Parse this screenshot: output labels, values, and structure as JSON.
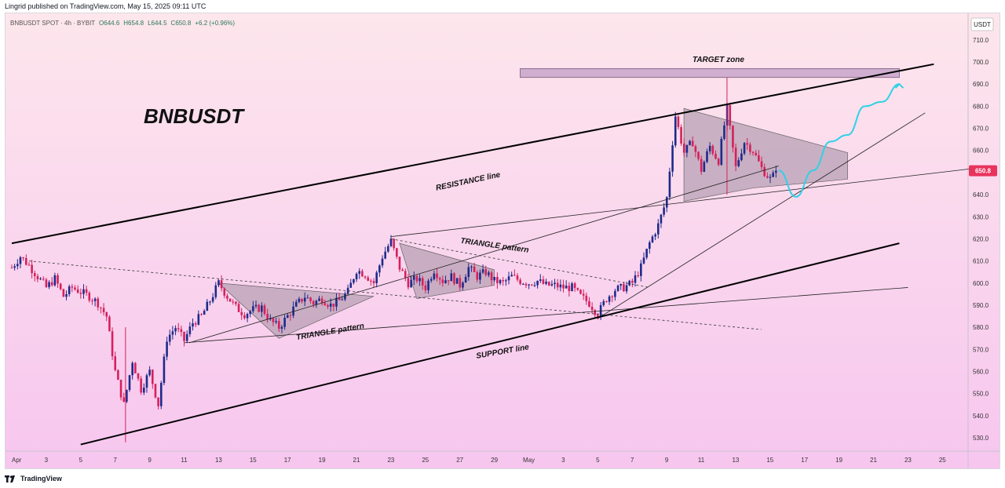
{
  "header": {
    "published_text": "Lingrid published on TradingView.com, May 15, 2025 09:11 UTC"
  },
  "footer": {
    "brand": "TradingView"
  },
  "colors": {
    "bg_top": "#fde6ec",
    "bg_bottom": "#f7c6ef",
    "up_candle": "#1e2a8a",
    "down_candle": "#d4215c",
    "price_tag": "#e8335d",
    "projection": "#2fd1e6",
    "zone_fill": "#c3a1c8",
    "triangle_fill": "#b8a0b4"
  },
  "chart_data": {
    "type": "candlestick",
    "symbol_info": {
      "name": "BNBUSDT SPOT · 4h · BYBIT",
      "open": "O644.6",
      "high": "H654.8",
      "low": "L644.5",
      "close": "C650.8",
      "change": "+6.2 (+0.96%)"
    },
    "watermark": "BNBUSDT",
    "currency": "USDT",
    "last_price": "650.8",
    "ylim": [
      524,
      722
    ],
    "y_ticks": [
      "530.0",
      "540.0",
      "550.0",
      "560.0",
      "570.0",
      "580.0",
      "590.0",
      "600.0",
      "610.0",
      "620.0",
      "630.0",
      "640.0",
      "650.0",
      "660.0",
      "670.0",
      "680.0",
      "690.0",
      "700.0",
      "710.0"
    ],
    "x_ticks": [
      {
        "label": "Apr",
        "day": 0
      },
      {
        "label": "3",
        "day": 2
      },
      {
        "label": "5",
        "day": 4
      },
      {
        "label": "7",
        "day": 6
      },
      {
        "label": "9",
        "day": 8
      },
      {
        "label": "11",
        "day": 10
      },
      {
        "label": "13",
        "day": 12
      },
      {
        "label": "15",
        "day": 14
      },
      {
        "label": "17",
        "day": 16
      },
      {
        "label": "19",
        "day": 18
      },
      {
        "label": "21",
        "day": 20
      },
      {
        "label": "23",
        "day": 22
      },
      {
        "label": "25",
        "day": 24
      },
      {
        "label": "27",
        "day": 26
      },
      {
        "label": "29",
        "day": 28
      },
      {
        "label": "May",
        "day": 30
      },
      {
        "label": "3",
        "day": 32
      },
      {
        "label": "5",
        "day": 34
      },
      {
        "label": "7",
        "day": 36
      },
      {
        "label": "9",
        "day": 38
      },
      {
        "label": "11",
        "day": 40
      },
      {
        "label": "13",
        "day": 42
      },
      {
        "label": "15",
        "day": 44
      },
      {
        "label": "17",
        "day": 46
      },
      {
        "label": "19",
        "day": 48
      },
      {
        "label": "21",
        "day": 50
      },
      {
        "label": "23",
        "day": 52
      },
      {
        "label": "25",
        "day": 54
      }
    ],
    "close_path": [
      [
        0,
        607
      ],
      [
        0.5,
        612
      ],
      [
        1,
        608
      ],
      [
        1.5,
        603
      ],
      [
        2,
        598
      ],
      [
        2.5,
        602
      ],
      [
        3,
        594
      ],
      [
        3.5,
        598
      ],
      [
        4,
        596
      ],
      [
        4.5,
        594
      ],
      [
        5,
        591
      ],
      [
        5.5,
        585
      ],
      [
        6,
        560
      ],
      [
        6.5,
        545
      ],
      [
        7,
        565
      ],
      [
        7.5,
        552
      ],
      [
        8,
        560
      ],
      [
        8.5,
        545
      ],
      [
        9,
        575
      ],
      [
        9.5,
        580
      ],
      [
        10,
        574
      ],
      [
        10.5,
        582
      ],
      [
        11,
        585
      ],
      [
        11.5,
        592
      ],
      [
        12,
        600
      ],
      [
        12.5,
        594
      ],
      [
        13,
        589
      ],
      [
        13.5,
        586
      ],
      [
        14,
        588
      ],
      [
        14.5,
        589
      ],
      [
        15,
        583
      ],
      [
        15.5,
        580
      ],
      [
        16,
        585
      ],
      [
        16.5,
        590
      ],
      [
        17,
        594
      ],
      [
        17.5,
        591
      ],
      [
        18,
        593
      ],
      [
        18.5,
        590
      ],
      [
        19,
        592
      ],
      [
        19.5,
        596
      ],
      [
        20,
        606
      ],
      [
        20.5,
        604
      ],
      [
        21,
        600
      ],
      [
        21.5,
        612
      ],
      [
        22,
        619
      ],
      [
        22.5,
        607
      ],
      [
        23,
        600
      ],
      [
        23.5,
        602
      ],
      [
        24,
        598
      ],
      [
        24.5,
        606
      ],
      [
        25,
        601
      ],
      [
        25.5,
        603
      ],
      [
        26,
        599
      ],
      [
        26.5,
        607
      ],
      [
        27,
        603
      ],
      [
        27.5,
        605
      ],
      [
        28,
        601
      ],
      [
        28.5,
        600
      ],
      [
        29,
        603
      ],
      [
        29.5,
        601
      ],
      [
        30,
        600
      ],
      [
        30.5,
        601
      ],
      [
        31,
        599
      ],
      [
        31.5,
        599
      ],
      [
        32,
        598
      ],
      [
        32.5,
        598
      ],
      [
        33,
        594
      ],
      [
        33.5,
        591
      ],
      [
        34,
        586
      ],
      [
        34.5,
        593
      ],
      [
        35,
        597
      ],
      [
        35.5,
        598
      ],
      [
        36,
        600
      ],
      [
        36.5,
        607
      ],
      [
        37,
        618
      ],
      [
        37.5,
        626
      ],
      [
        38,
        638
      ],
      [
        38.5,
        676
      ],
      [
        39,
        659
      ],
      [
        39.5,
        664
      ],
      [
        40,
        651
      ],
      [
        40.5,
        662
      ],
      [
        41,
        655
      ],
      [
        41.5,
        679
      ],
      [
        42,
        652
      ],
      [
        42.5,
        664
      ],
      [
        43,
        660
      ],
      [
        43.5,
        652
      ],
      [
        44,
        647
      ],
      [
        44.5,
        651
      ]
    ],
    "projection_path": [
      [
        44.5,
        651
      ],
      [
        45.5,
        639
      ],
      [
        46.5,
        651
      ],
      [
        47.5,
        664
      ],
      [
        48.5,
        667
      ],
      [
        49.5,
        680
      ],
      [
        50.5,
        682
      ],
      [
        51.5,
        690
      ]
    ],
    "resistance_line": [
      [
        0,
        618
      ],
      [
        53.5,
        699
      ]
    ],
    "support_line": [
      [
        4,
        527
      ],
      [
        51.5,
        618
      ]
    ],
    "lines": [
      {
        "points": [
          [
            10,
            573
          ],
          [
            52,
            598
          ]
        ]
      },
      {
        "points": [
          [
            10.3,
            573
          ],
          [
            44.5,
            653
          ]
        ]
      },
      {
        "points": [
          [
            22,
            621
          ],
          [
            56,
            652
          ]
        ]
      },
      {
        "points": [
          [
            34,
            584
          ],
          [
            53,
            677
          ]
        ]
      }
    ],
    "dashed_lines": [
      {
        "points": [
          [
            1,
            610
          ],
          [
            43.5,
            579
          ]
        ]
      },
      {
        "points": [
          [
            22,
            620
          ],
          [
            37,
            598
          ]
        ]
      }
    ],
    "triangles": [
      {
        "points": [
          [
            12,
            600
          ],
          [
            21,
            594
          ],
          [
            15.5,
            575
          ]
        ],
        "fill": "#b8a0b4"
      },
      {
        "points": [
          [
            22.5,
            618
          ],
          [
            28,
            606
          ],
          [
            28,
            599
          ],
          [
            23.5,
            593
          ]
        ],
        "fill": "#b8a0b4"
      },
      {
        "points": [
          [
            39,
            679
          ],
          [
            48.5,
            659
          ],
          [
            48.5,
            647
          ],
          [
            43,
            643
          ],
          [
            39,
            637
          ]
        ],
        "fill": "#b8a0b4"
      }
    ],
    "target_zone": {
      "day_start": 29.5,
      "day_end": 51.5,
      "top": 697,
      "bottom": 693
    },
    "annotations": [
      {
        "text": "TARGET zone",
        "day": 41,
        "price": 700,
        "rotate": 0
      },
      {
        "text": "RESISTANCE line",
        "day": 26.5,
        "price": 645,
        "rotate": -12
      },
      {
        "text": "TRIANGLE pattern",
        "day": 28,
        "price": 616,
        "rotate": 8
      },
      {
        "text": "TRIANGLE pattern",
        "day": 18.5,
        "price": 577,
        "rotate": -10
      },
      {
        "text": "SUPPORT line",
        "day": 28.5,
        "price": 568,
        "rotate": -10
      }
    ]
  }
}
